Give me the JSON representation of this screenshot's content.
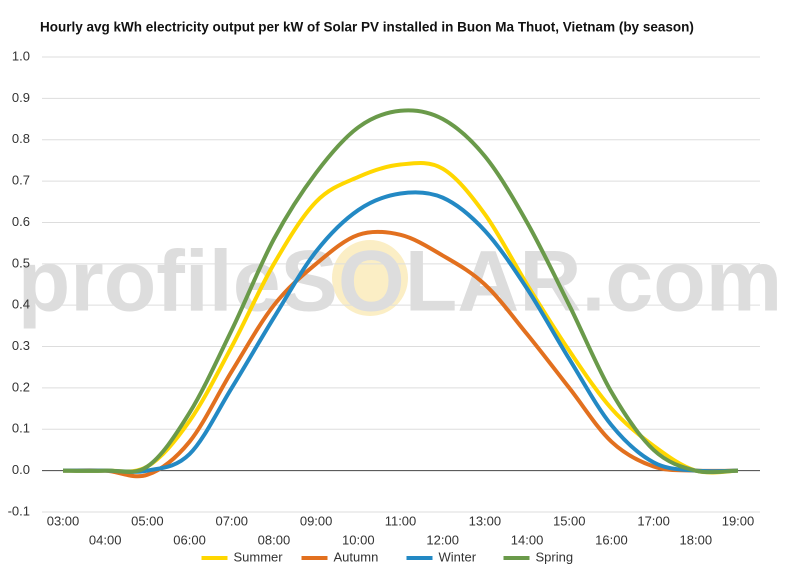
{
  "chart_data": {
    "type": "line",
    "title": "Hourly avg kWh electricity output per kW of Solar PV installed in Buon Ma Thuot, Vietnam (by season)",
    "watermark": "profileSOLAR.com",
    "categories": [
      "03:00",
      "04:00",
      "05:00",
      "06:00",
      "07:00",
      "08:00",
      "09:00",
      "10:00",
      "11:00",
      "12:00",
      "13:00",
      "14:00",
      "15:00",
      "16:00",
      "17:00",
      "18:00",
      "19:00"
    ],
    "series": [
      {
        "name": "Summer",
        "color": "#ffd700",
        "values": [
          0,
          0,
          0.01,
          0.12,
          0.3,
          0.5,
          0.65,
          0.71,
          0.74,
          0.73,
          0.62,
          0.45,
          0.29,
          0.15,
          0.06,
          0.0,
          0
        ]
      },
      {
        "name": "Autumn",
        "color": "#e2701f",
        "values": [
          0,
          0,
          -0.01,
          0.07,
          0.24,
          0.4,
          0.5,
          0.57,
          0.57,
          0.52,
          0.45,
          0.33,
          0.2,
          0.07,
          0.01,
          0,
          0
        ]
      },
      {
        "name": "Winter",
        "color": "#2389c4",
        "values": [
          0,
          0,
          0.0,
          0.04,
          0.2,
          0.37,
          0.53,
          0.63,
          0.67,
          0.66,
          0.58,
          0.44,
          0.27,
          0.11,
          0.02,
          0,
          0
        ]
      },
      {
        "name": "Spring",
        "color": "#6a9a4a",
        "values": [
          0,
          0,
          0.01,
          0.14,
          0.34,
          0.56,
          0.72,
          0.83,
          0.87,
          0.85,
          0.76,
          0.6,
          0.4,
          0.19,
          0.05,
          0,
          0
        ]
      }
    ],
    "ylim": [
      -0.1,
      1.0
    ],
    "yticks": [
      -0.1,
      {
        "value": 0,
        "label": "0.0"
      },
      0.1,
      0.2,
      0.3,
      0.4,
      0.5,
      0.6,
      0.7,
      0.8,
      0.9,
      {
        "value": 1,
        "label": "1.0"
      }
    ],
    "grid": true,
    "legend": "bottom"
  }
}
